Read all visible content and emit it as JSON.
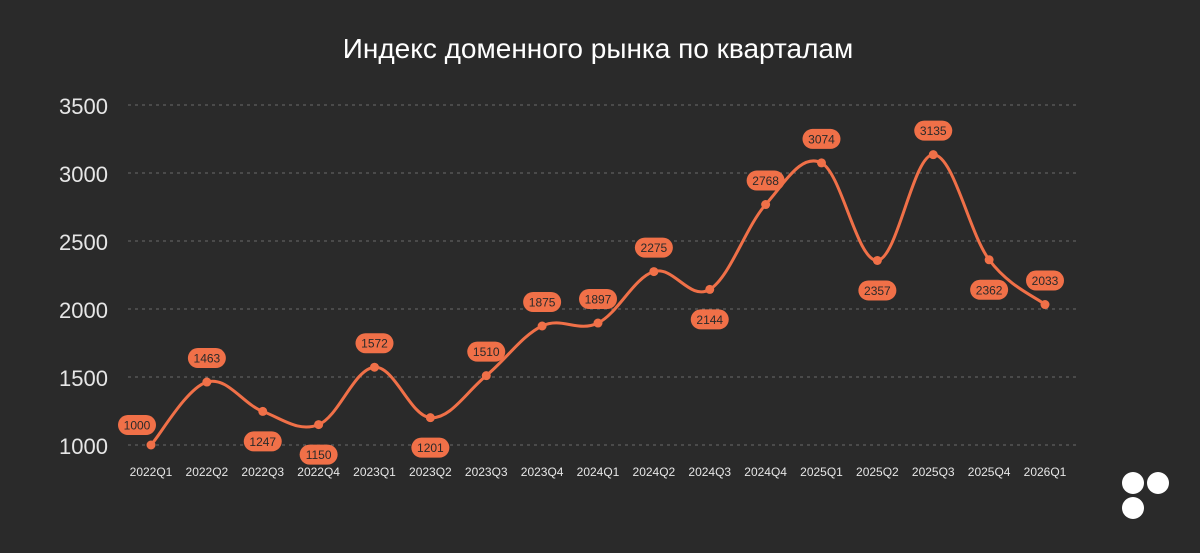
{
  "chart_data": {
    "type": "line",
    "title": "Индекс доменного рынка по кварталам",
    "xlabel": "",
    "ylabel": "",
    "ylim": [
      1000,
      3500
    ],
    "yticks": [
      1000,
      1500,
      2000,
      2500,
      3000,
      3500
    ],
    "grid": true,
    "categories": [
      "2022Q1",
      "2022Q2",
      "2022Q3",
      "2022Q4",
      "2023Q1",
      "2023Q2",
      "2023Q3",
      "2023Q4",
      "2024Q1",
      "2024Q2",
      "2024Q3",
      "2024Q4",
      "2025Q1",
      "2025Q2",
      "2025Q3",
      "2025Q4",
      "2026Q1"
    ],
    "values": [
      1000,
      1463,
      1247,
      1150,
      1572,
      1201,
      1510,
      1875,
      1897,
      2275,
      2144,
      2768,
      3074,
      2357,
      3135,
      2362,
      2033
    ],
    "data_labels": [
      "1000",
      "1463",
      "1247",
      "1150",
      "1572",
      "1201",
      "1510",
      "1875",
      "1897",
      "2275",
      "2144",
      "2768",
      "3074",
      "2357",
      "3135",
      "2362",
      "2033"
    ]
  },
  "colors": {
    "background": "#2a2a2a",
    "line": "#f07048",
    "label_text": "#2a2a2a",
    "axis_text": "#e6e6e6",
    "grid": "#6a6a6a"
  },
  "logo": {
    "icon": "four-dots-logo-icon"
  }
}
